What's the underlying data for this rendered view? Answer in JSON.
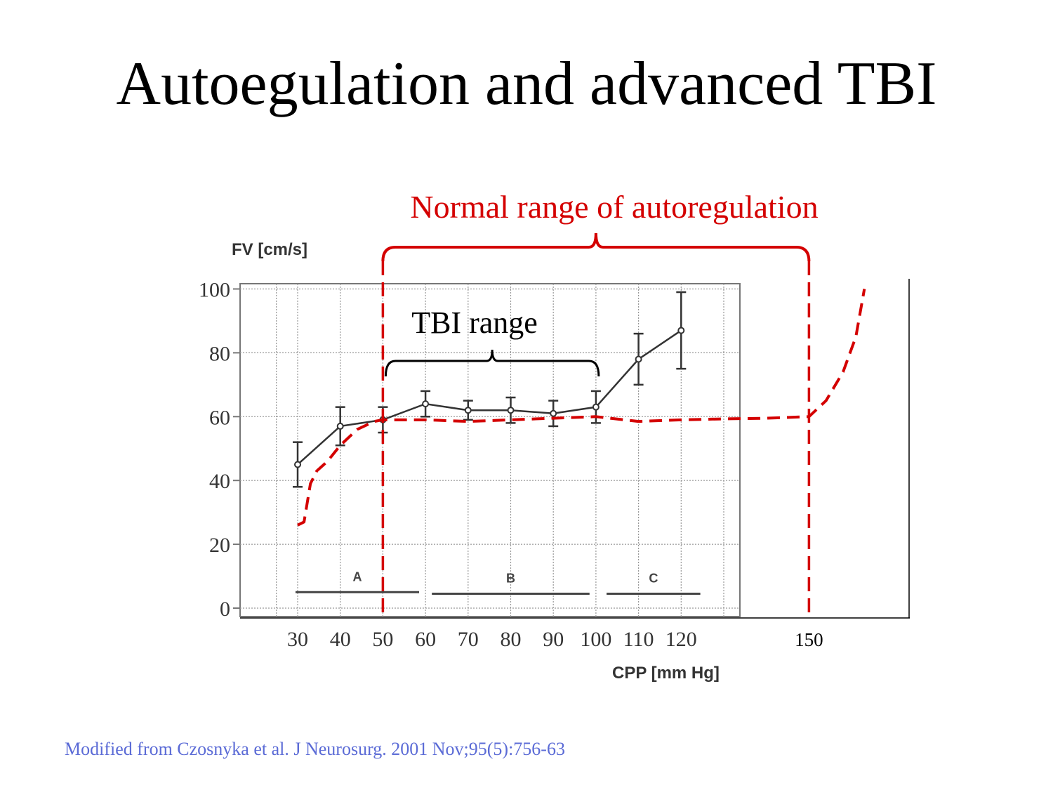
{
  "slide": {
    "title": "Autoegulation and advanced TBI",
    "citation": "Modified from Czosnyka et al. J Neurosurg. 2001 Nov;95(5):756-63"
  },
  "chart_data": {
    "type": "line",
    "ylabel": "FV [cm/s]",
    "xlabel": "CPP [mm Hg]",
    "xlim": [
      20,
      160
    ],
    "ylim": [
      0,
      100
    ],
    "y_ticks": [
      0,
      20,
      40,
      60,
      80,
      100
    ],
    "x_ticks": [
      30,
      40,
      50,
      60,
      70,
      80,
      90,
      100,
      110,
      120,
      150
    ],
    "grid": true,
    "series": [
      {
        "style": "solid-with-error-bars",
        "color": "#333333",
        "x": [
          30,
          40,
          50,
          60,
          70,
          80,
          90,
          100,
          110,
          120
        ],
        "y": [
          45,
          57,
          59,
          64,
          62,
          62,
          61,
          63,
          78,
          87
        ],
        "err": [
          7,
          6,
          4,
          4,
          3,
          4,
          4,
          5,
          8,
          12
        ]
      },
      {
        "style": "dashed",
        "color": "#d40000",
        "x": [
          30,
          31.5,
          33,
          34.5,
          37,
          40,
          44,
          48,
          50,
          60,
          70,
          80,
          90,
          100,
          110,
          120,
          130,
          140,
          150,
          154,
          158,
          161,
          163
        ],
        "y": [
          26,
          27,
          39,
          43,
          46,
          51,
          56,
          58.5,
          59,
          59,
          58.5,
          59,
          59.5,
          60,
          58.5,
          59,
          59.3,
          59.5,
          60,
          65,
          74,
          85,
          100
        ]
      }
    ],
    "region_bars": [
      {
        "label": "A",
        "x_start": 29.5,
        "x_end": 58.5,
        "y": 5
      },
      {
        "label": "B",
        "x_start": 61.5,
        "x_end": 98.5,
        "y": 4.5
      },
      {
        "label": "C",
        "x_start": 102.5,
        "x_end": 124.5,
        "y": 4.5
      }
    ],
    "annotations": {
      "normal_range": {
        "label": "Normal range of autoregulation",
        "x_start": 50,
        "x_end": 150,
        "color": "#d40000"
      },
      "tbi_range": {
        "label": "TBI range",
        "x_start": 50,
        "x_end": 100,
        "color": "#000000"
      }
    }
  }
}
